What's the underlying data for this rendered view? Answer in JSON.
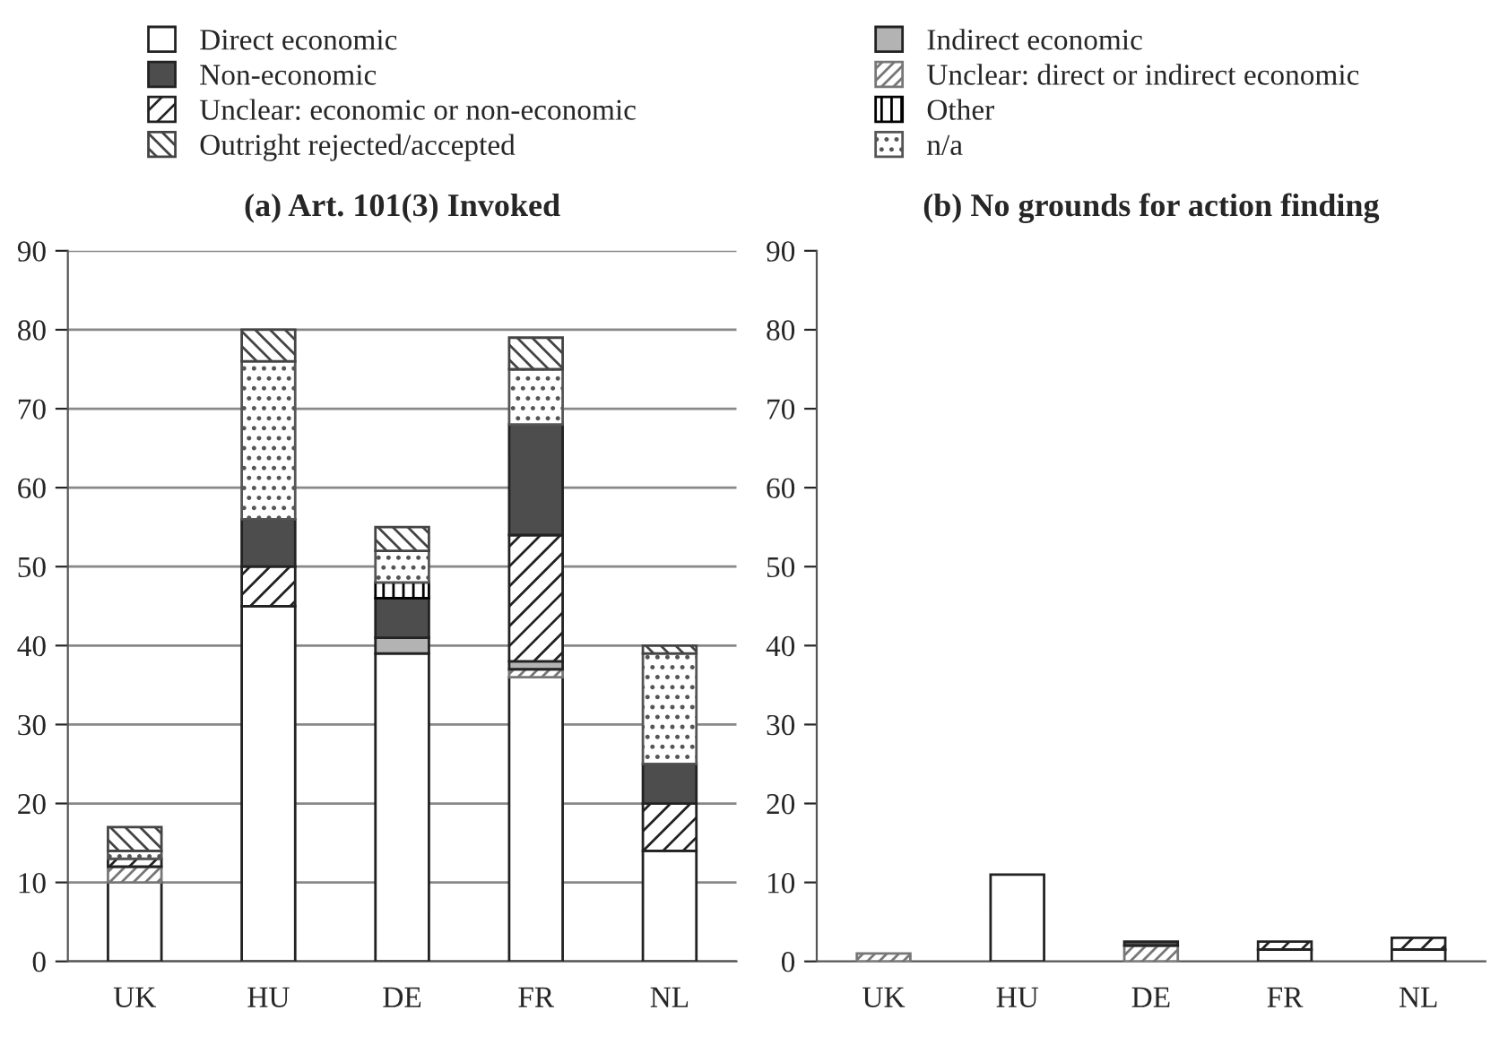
{
  "chart_data": [
    {
      "type": "bar",
      "stacked": true,
      "title": "(a) Art. 101(3) Invoked",
      "categories": [
        "UK",
        "HU",
        "DE",
        "FR",
        "NL"
      ],
      "ylim": [
        0,
        90
      ],
      "yticks": [
        0,
        10,
        20,
        30,
        40,
        50,
        60,
        70,
        80,
        90
      ],
      "grid": "y",
      "legend": "top",
      "series": [
        {
          "name": "Direct economic",
          "color": "#ffffff",
          "values": [
            10,
            45,
            39,
            36,
            14
          ]
        },
        {
          "name": "Unclear: direct or indirect economic",
          "color": "#777777",
          "values": [
            2,
            null,
            null,
            1,
            null
          ]
        },
        {
          "name": "Indirect economic",
          "color": "#b3b3b3",
          "values": [
            null,
            null,
            2,
            1,
            null
          ]
        },
        {
          "name": "Unclear: economic or non-economic",
          "color": "#222222",
          "values": [
            1,
            5,
            null,
            16,
            6
          ]
        },
        {
          "name": "Non-economic",
          "color": "#4d4d4d",
          "values": [
            null,
            6,
            5,
            14,
            5
          ]
        },
        {
          "name": "Other",
          "color": "#000000",
          "values": [
            null,
            null,
            2,
            null,
            null
          ]
        },
        {
          "name": "n/a",
          "color": "#555555",
          "values": [
            1,
            20,
            4,
            7,
            14
          ]
        },
        {
          "name": "Outright rejected/accepted",
          "color": "#444444",
          "values": [
            3,
            4,
            3,
            4,
            1
          ]
        }
      ]
    },
    {
      "type": "bar",
      "stacked": true,
      "title": "(b) No grounds for action finding",
      "categories": [
        "UK",
        "HU",
        "DE",
        "FR",
        "NL"
      ],
      "ylim": [
        0,
        90
      ],
      "yticks": [
        0,
        10,
        20,
        30,
        40,
        50,
        60,
        70,
        80,
        90
      ],
      "series": [
        {
          "color": "#ffffff",
          "values": [
            null,
            11,
            null,
            1.5,
            1.5
          ]
        },
        {
          "color": "#777777",
          "values": [
            1,
            null,
            2,
            null,
            null
          ]
        },
        {
          "color": "#222222",
          "values": [
            null,
            null,
            null,
            1,
            1.5
          ]
        },
        {
          "color": "#4d4d4d",
          "values": [
            null,
            null,
            0.5,
            null,
            null
          ]
        }
      ]
    }
  ]
}
